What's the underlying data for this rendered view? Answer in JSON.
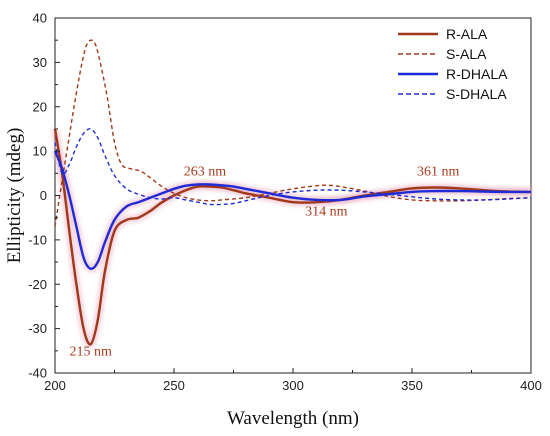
{
  "chart_data": {
    "type": "line",
    "xlabel": "Wavelength  (nm)",
    "ylabel": "Ellipticity  (mdeg)",
    "xlim": [
      200,
      400
    ],
    "ylim": [
      -40,
      40
    ],
    "xticks": [
      "200",
      "250",
      "300",
      "350",
      "400"
    ],
    "yticks": [
      "-40",
      "-30",
      "-20",
      "-10",
      "0",
      "10",
      "20",
      "30",
      "40"
    ],
    "legend_position": "top-right",
    "annotations": [
      {
        "text": "215 nm",
        "x": 215,
        "y": -36
      },
      {
        "text": "263 nm",
        "x": 263,
        "y": 4.5
      },
      {
        "text": "314 nm",
        "x": 314,
        "y": -4.5
      },
      {
        "text": "361 nm",
        "x": 361,
        "y": 4.5
      }
    ],
    "series": [
      {
        "name": "R-ALA",
        "color": "#a0381a",
        "dash": false,
        "glow": true,
        "x": [
          200,
          203,
          206,
          209,
          212,
          215,
          218,
          221,
          225,
          230,
          235,
          240,
          245,
          250,
          255,
          260,
          265,
          270,
          275,
          280,
          290,
          300,
          310,
          320,
          330,
          340,
          350,
          360,
          370,
          380,
          390,
          400
        ],
        "y": [
          15,
          5,
          -8,
          -20,
          -30,
          -33.5,
          -28,
          -17,
          -8,
          -5.5,
          -5,
          -3.5,
          -1.5,
          0,
          1.2,
          2,
          2,
          1.8,
          1.2,
          0.5,
          -0.5,
          -1.5,
          -1.5,
          -1,
          0,
          0.8,
          1.6,
          1.8,
          1.6,
          1.2,
          0.9,
          0.8
        ]
      },
      {
        "name": "S-ALA",
        "color": "#a0381a",
        "dash": true,
        "glow": false,
        "x": [
          200,
          202,
          205,
          208,
          211,
          213,
          215,
          217,
          219,
          222,
          225,
          228,
          232,
          236,
          240,
          245,
          250,
          255,
          260,
          265,
          270,
          280,
          290,
          300,
          310,
          315,
          320,
          330,
          340,
          350,
          360,
          370,
          380,
          390,
          400
        ],
        "y": [
          -7,
          0,
          10,
          20,
          29,
          33.5,
          35,
          34,
          30,
          22,
          12,
          7,
          6,
          5.5,
          4,
          2,
          0.5,
          -0.5,
          -1,
          -1.2,
          -1,
          -0.5,
          0.5,
          1.5,
          2.2,
          2.3,
          2,
          1,
          -0.2,
          -1,
          -1.2,
          -1.2,
          -1,
          -0.7,
          -0.5
        ]
      },
      {
        "name": "R-DHALA",
        "color": "#1f2bd6",
        "dash": false,
        "glow": true,
        "x": [
          200,
          203,
          206,
          209,
          212,
          215,
          218,
          221,
          225,
          230,
          235,
          240,
          245,
          250,
          255,
          260,
          265,
          270,
          275,
          280,
          290,
          300,
          310,
          320,
          330,
          340,
          350,
          360,
          370,
          380,
          390,
          400
        ],
        "y": [
          10,
          6,
          0,
          -7,
          -14,
          -16.5,
          -15,
          -10.5,
          -5.5,
          -2.5,
          -1.5,
          -0.5,
          0.5,
          1.5,
          2.2,
          2.5,
          2.5,
          2.3,
          2,
          1.5,
          0.5,
          -0.5,
          -1,
          -1,
          -0.2,
          0.3,
          0.8,
          1,
          1,
          0.9,
          0.8,
          0.8
        ]
      },
      {
        "name": "S-DHALA",
        "color": "#1f2bd6",
        "dash": true,
        "glow": false,
        "x": [
          200,
          203,
          206,
          209,
          212,
          215,
          218,
          221,
          225,
          230,
          235,
          240,
          245,
          250,
          255,
          260,
          265,
          270,
          275,
          280,
          290,
          300,
          310,
          320,
          330,
          340,
          350,
          360,
          370,
          380,
          390,
          400
        ],
        "y": [
          12,
          5,
          7,
          11,
          14,
          15,
          13,
          9,
          4.5,
          1.5,
          0.3,
          -0.5,
          -0.8,
          -0.5,
          -1,
          -1.5,
          -2,
          -2,
          -1.8,
          -1.2,
          0,
          0.8,
          1.2,
          1.2,
          0.8,
          0.3,
          -0.3,
          -0.8,
          -1,
          -1,
          -0.8,
          -0.5
        ]
      }
    ]
  }
}
